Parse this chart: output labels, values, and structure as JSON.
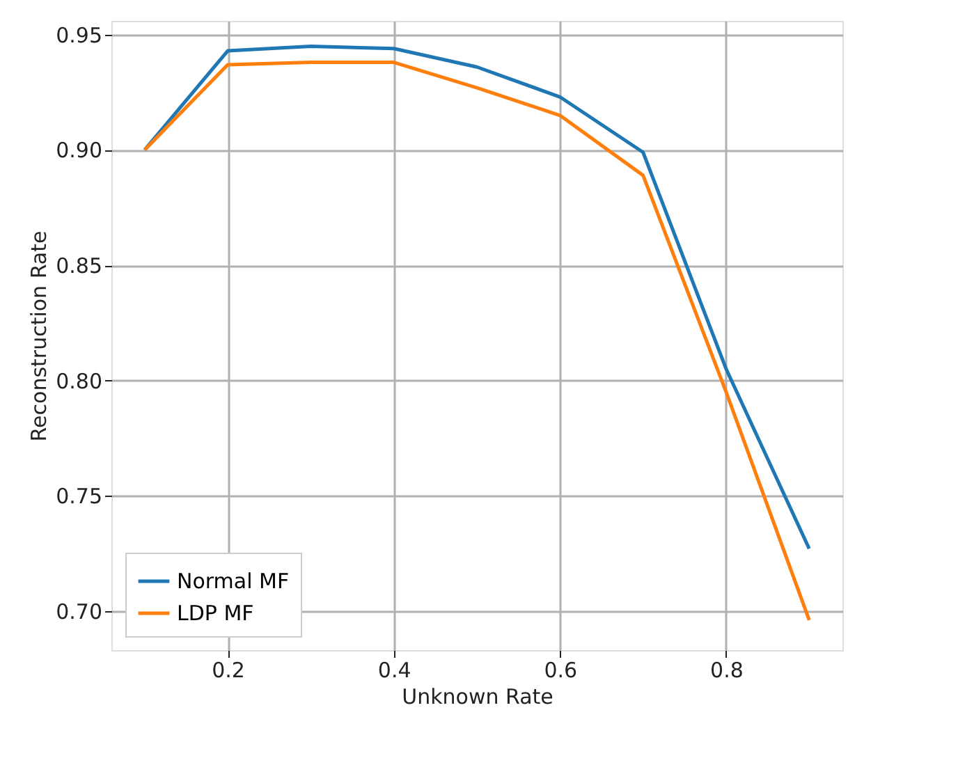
{
  "chart_data": {
    "type": "line",
    "xlabel": "Unknown Rate",
    "ylabel": "Reconstruction Rate",
    "x": [
      0.1,
      0.2,
      0.3,
      0.4,
      0.5,
      0.6,
      0.7,
      0.8,
      0.9
    ],
    "series": [
      {
        "name": "Normal MF",
        "color": "#1f77b4",
        "values": [
          0.9,
          0.943,
          0.945,
          0.944,
          0.936,
          0.923,
          0.899,
          0.805,
          0.727
        ]
      },
      {
        "name": "LDP MF",
        "color": "#ff7f0e",
        "values": [
          0.9,
          0.937,
          0.938,
          0.938,
          0.927,
          0.915,
          0.889,
          0.795,
          0.696
        ]
      }
    ],
    "xlim": [
      0.06,
      0.94
    ],
    "ylim": [
      0.683,
      0.956
    ],
    "xticks": [
      0.2,
      0.4,
      0.6,
      0.8
    ],
    "yticks": [
      {
        "value": 0.7,
        "label": "0.70"
      },
      0.75,
      {
        "value": 0.8,
        "label": "0.80"
      },
      0.85,
      {
        "value": 0.9,
        "label": "0.90"
      },
      0.95
    ],
    "grid": true,
    "legend": "bottom left",
    "marker": "none",
    "line_style": "solid"
  }
}
